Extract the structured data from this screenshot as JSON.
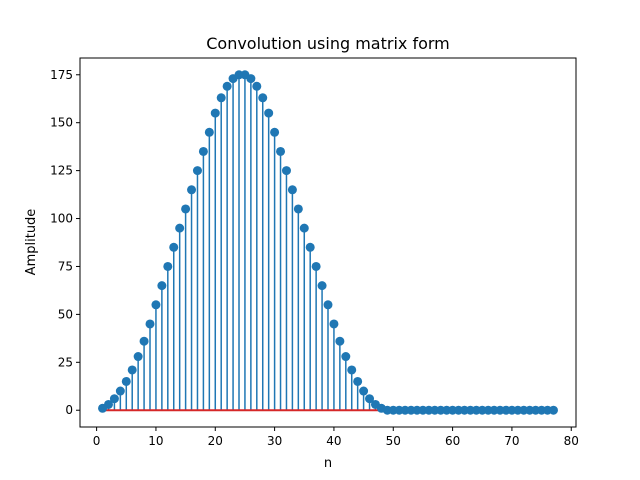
{
  "chart_data": {
    "type": "stem",
    "title": "Convolution using matrix form",
    "xlabel": "n",
    "ylabel": "Amplitude",
    "xlim": [
      -2.8,
      80.8
    ],
    "ylim": [
      -8.75,
      183.75
    ],
    "xticks": [
      0,
      10,
      20,
      30,
      40,
      50,
      60,
      70,
      80
    ],
    "yticks": [
      0,
      25,
      50,
      75,
      100,
      125,
      150,
      175
    ],
    "baseline": 0,
    "grid": false,
    "x": [
      1,
      2,
      3,
      4,
      5,
      6,
      7,
      8,
      9,
      10,
      11,
      12,
      13,
      14,
      15,
      16,
      17,
      18,
      19,
      20,
      21,
      22,
      23,
      24,
      25,
      26,
      27,
      28,
      29,
      30,
      31,
      32,
      33,
      34,
      35,
      36,
      37,
      38,
      39,
      40,
      41,
      42,
      43,
      44,
      45,
      46,
      47,
      48,
      49,
      50,
      51,
      52,
      53,
      54,
      55,
      56,
      57,
      58,
      59,
      60,
      61,
      62,
      63,
      64,
      65,
      66,
      67,
      68,
      69,
      70,
      71,
      72,
      73,
      74,
      75,
      76,
      77
    ],
    "values": [
      1,
      3,
      6,
      10,
      15,
      21,
      28,
      36,
      45,
      55,
      65,
      75,
      85,
      95,
      105,
      115,
      125,
      135,
      145,
      155,
      163,
      169,
      173,
      175,
      175,
      173,
      169,
      163,
      155,
      145,
      135,
      125,
      115,
      105,
      95,
      85,
      75,
      65,
      55,
      45,
      36,
      28,
      21,
      15,
      10,
      6,
      3,
      1,
      0,
      0,
      0,
      0,
      0,
      0,
      0,
      0,
      0,
      0,
      0,
      0,
      0,
      0,
      0,
      0,
      0,
      0,
      0,
      0,
      0,
      0,
      0,
      0,
      0,
      0,
      0,
      0,
      0
    ],
    "colors": {
      "stem": "#1f77b4",
      "marker": "#1f77b4",
      "baseline": "#d62728"
    }
  }
}
